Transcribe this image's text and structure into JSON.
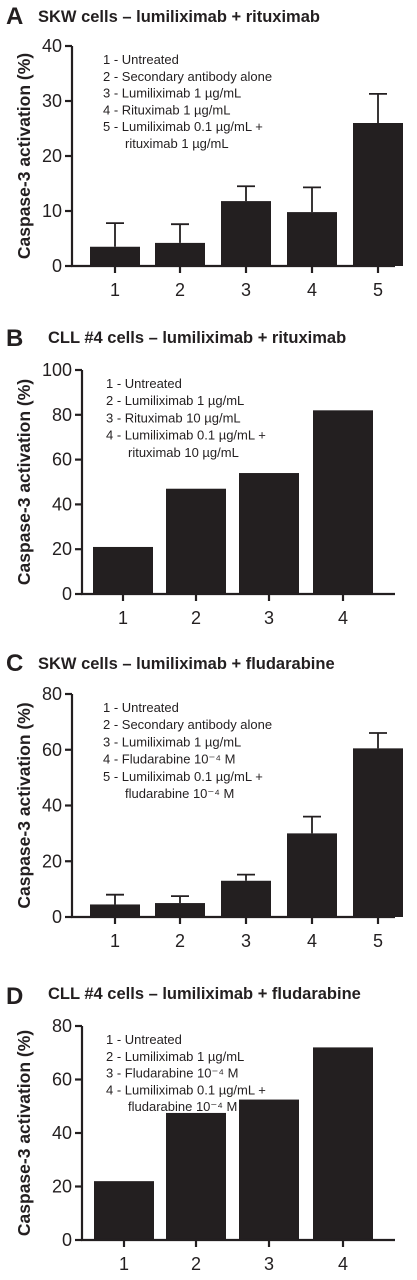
{
  "chart_data": [
    {
      "panel": "A",
      "type": "bar",
      "title": "SKW cells – lumiliximab + rituximab",
      "ylabel": "Caspase-3 activation (%)",
      "ylim": [
        0,
        40
      ],
      "yticks": [
        "0",
        "10",
        "20",
        "30",
        "40"
      ],
      "categories": [
        "1",
        "2",
        "3",
        "4",
        "5"
      ],
      "values": [
        3.5,
        4.2,
        11.8,
        9.8,
        26
      ],
      "errors": [
        4.3,
        3.4,
        2.7,
        4.5,
        5.3
      ],
      "legend": [
        [
          "1 - Untreated"
        ],
        [
          "2 - Secondary antibody alone"
        ],
        [
          "3 - Lumiliximab 1 µg/mL"
        ],
        [
          "4 - Rituximab 1 µg/mL"
        ],
        [
          "5 - Lumiliximab 0.1 µg/mL +",
          "rituximab 1 µg/mL"
        ]
      ]
    },
    {
      "panel": "B",
      "type": "bar",
      "title": "CLL #4 cells – lumiliximab + rituximab",
      "ylabel": "Caspase-3 activation (%)",
      "ylim": [
        0,
        100
      ],
      "yticks": [
        "0",
        "20",
        "40",
        "60",
        "80",
        "100"
      ],
      "categories": [
        "1",
        "2",
        "3",
        "4"
      ],
      "values": [
        21,
        47,
        54,
        82
      ],
      "legend": [
        [
          "1 - Untreated"
        ],
        [
          "2 - Lumiliximab 1 µg/mL"
        ],
        [
          "3 - Rituximab 10 µg/mL"
        ],
        [
          "4 - Lumiliximab 0.1 µg/mL +",
          "rituximab 10 µg/mL"
        ]
      ]
    },
    {
      "panel": "C",
      "type": "bar",
      "title": "SKW cells – lumiliximab + fludarabine",
      "ylabel": "Caspase-3 activation (%)",
      "ylim": [
        0,
        80
      ],
      "yticks": [
        "0",
        "20",
        "40",
        "60",
        "80"
      ],
      "categories": [
        "1",
        "2",
        "3",
        "4",
        "5"
      ],
      "values": [
        4.5,
        5,
        13,
        30,
        60.5
      ],
      "errors": [
        3.5,
        2.5,
        2.2,
        6,
        5.5
      ],
      "legend": [
        [
          "1 - Untreated"
        ],
        [
          "2 - Secondary antibody alone"
        ],
        [
          "3 - Lumiliximab 1 µg/mL"
        ],
        [
          "4 - Fludarabine 10⁻⁴ M"
        ],
        [
          "5 - Lumiliximab 0.1 µg/mL +",
          "fludarabine 10⁻⁴ M"
        ]
      ]
    },
    {
      "panel": "D",
      "type": "bar",
      "title": "CLL #4 cells – lumiliximab + fludarabine",
      "ylabel": "Caspase-3 activation (%)",
      "ylim": [
        0,
        80
      ],
      "yticks": [
        "0",
        "20",
        "40",
        "60",
        "80"
      ],
      "categories": [
        "1",
        "2",
        "3",
        "4"
      ],
      "values": [
        22,
        47.5,
        52.5,
        72
      ],
      "legend": [
        [
          "1 - Untreated"
        ],
        [
          "2 - Lumiliximab 1 µg/mL"
        ],
        [
          "3 - Fludarabine 10⁻⁴ M"
        ],
        [
          "4 - Lumiliximab 0.1 µg/mL +",
          "fludarabine 10⁻⁴ M"
        ]
      ]
    }
  ]
}
